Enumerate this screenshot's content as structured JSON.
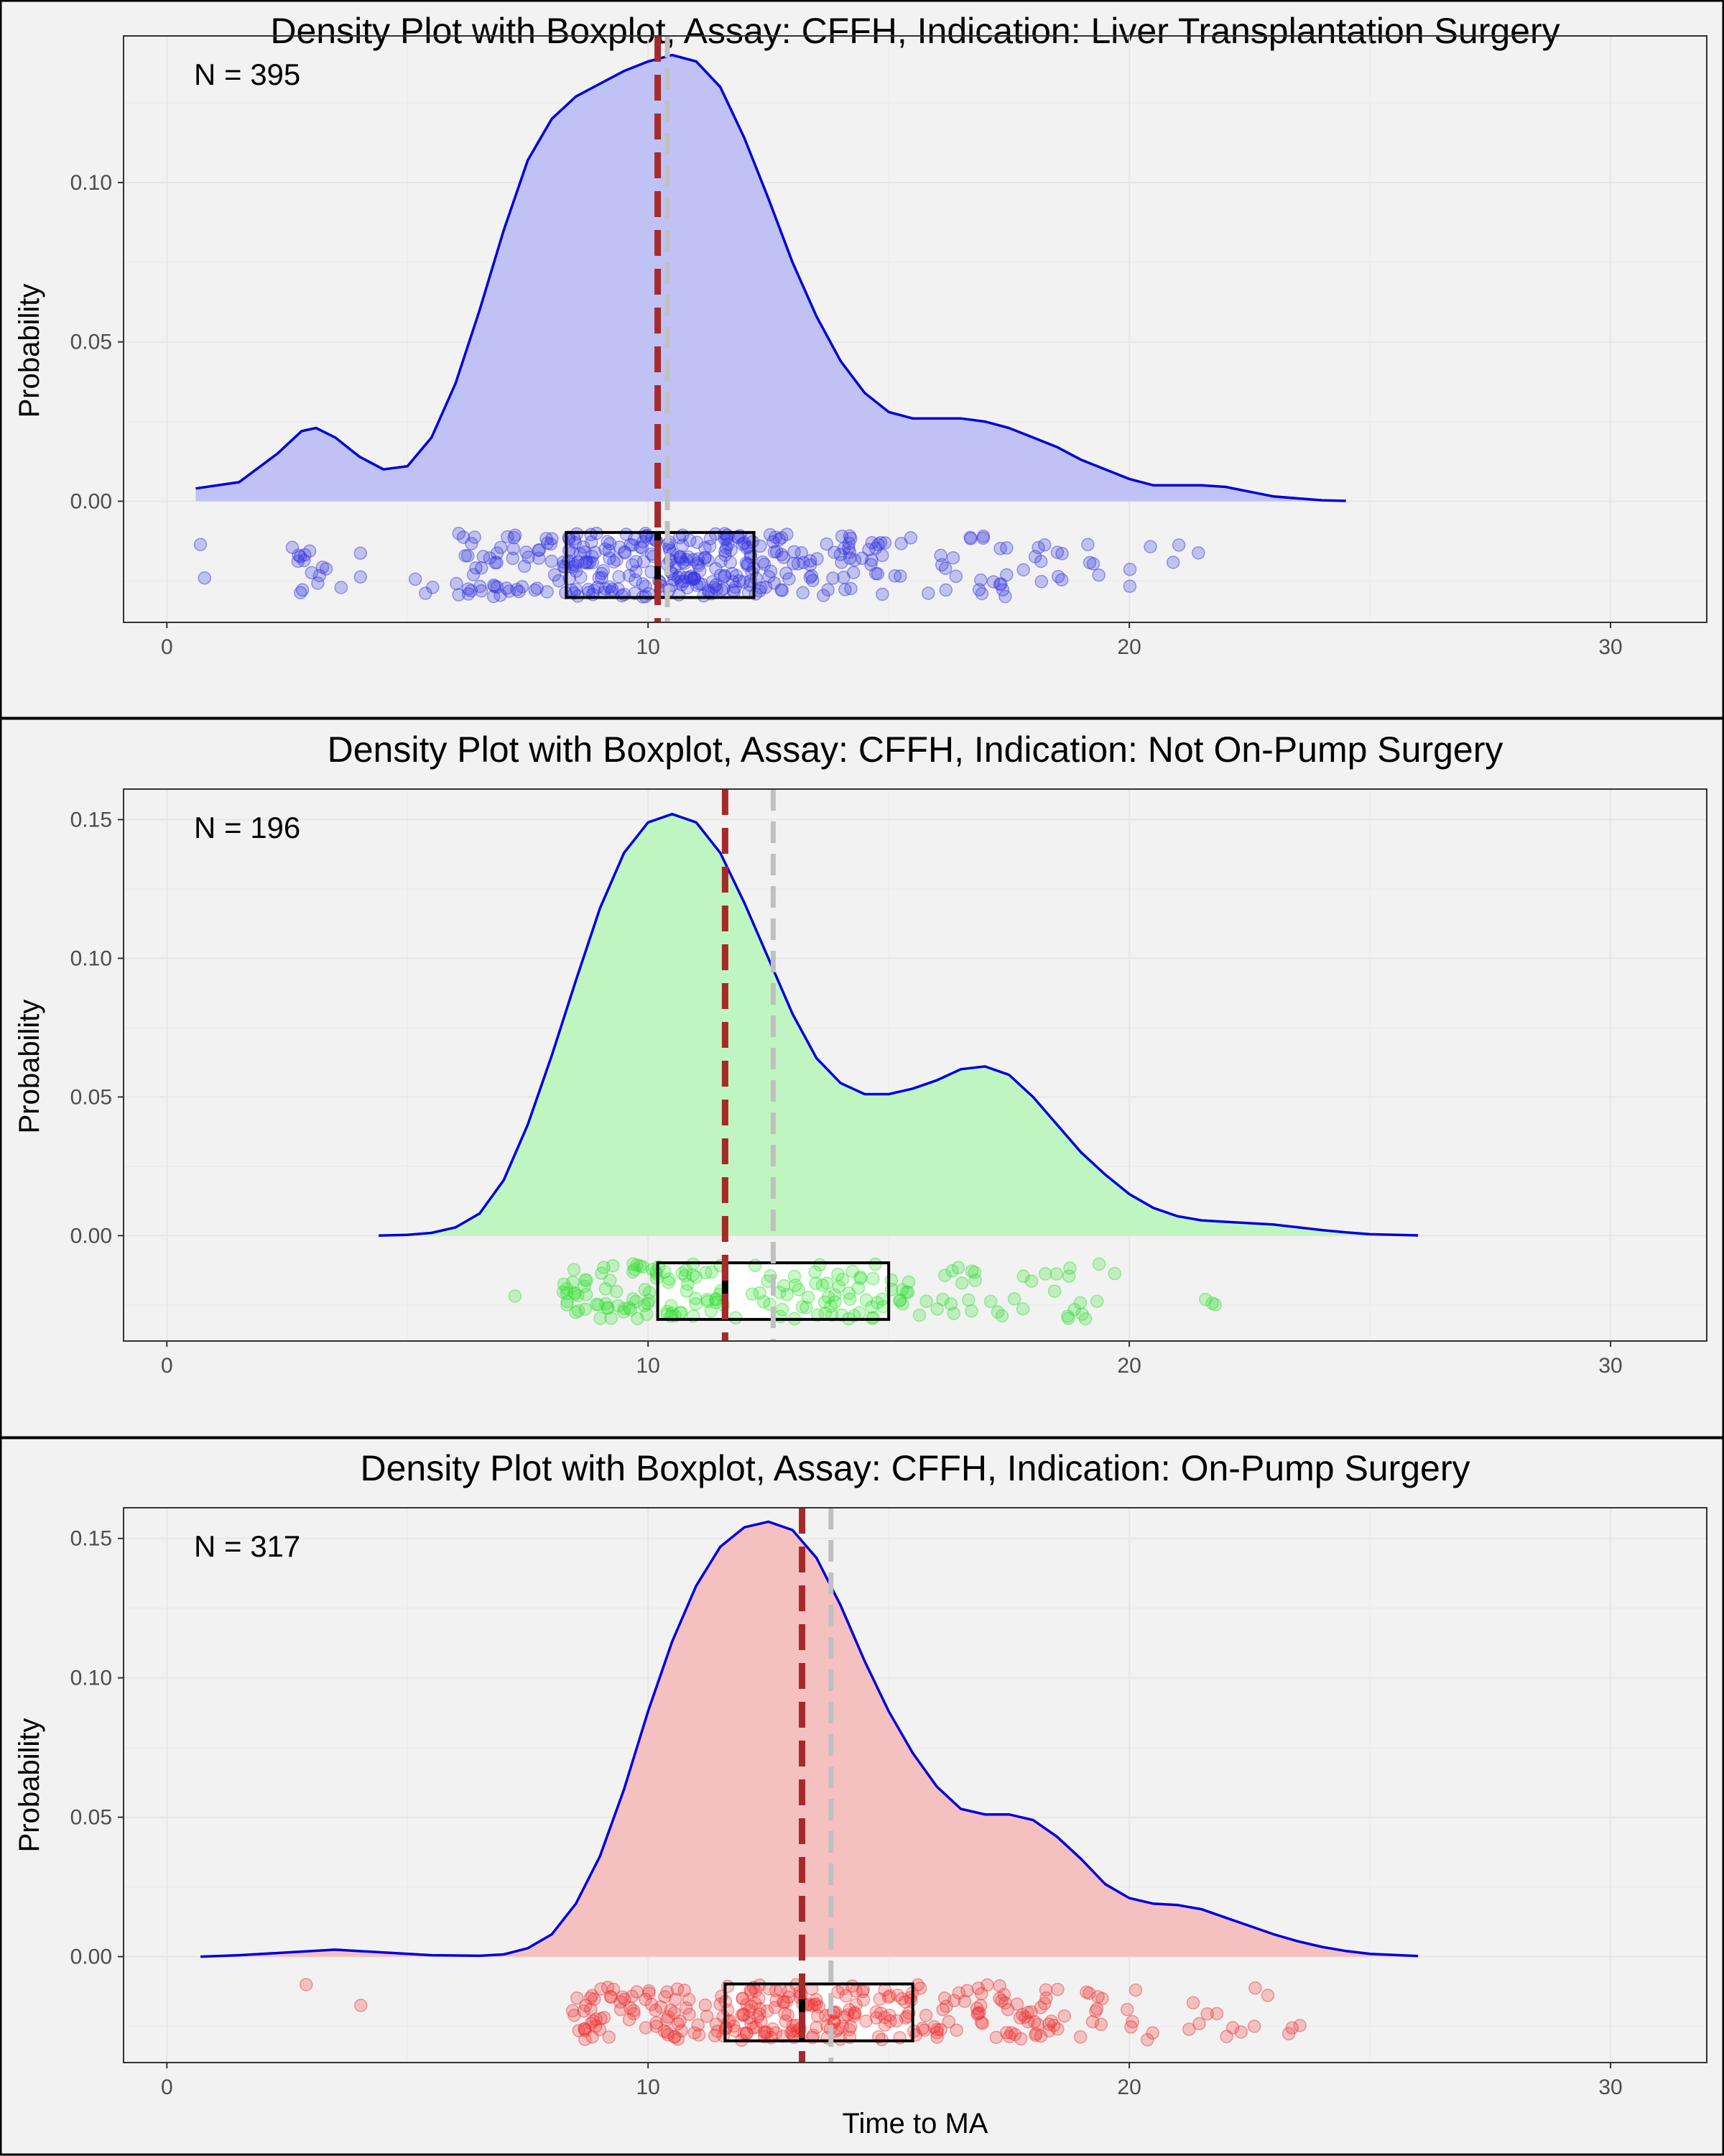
{
  "figure": {
    "xlabel": "Time to MA"
  },
  "chart_data": [
    {
      "type": "density+boxplot",
      "title": "Density Plot with Boxplot, Assay: CFFH, Indication: Liver Transplantation Surgery",
      "ylabel": "Probability",
      "annotation": "N = 395",
      "n": 395,
      "xlim": [
        -0.9,
        32
      ],
      "ylim": [
        -0.038,
        0.146
      ],
      "x_ticks": [
        0,
        10,
        20,
        30
      ],
      "y_ticks": [
        0,
        0.05,
        0.1
      ],
      "y_tick_labels": [
        "0.00",
        "0.05",
        "0.10"
      ],
      "fill_color": "#c0c2f5",
      "line_color": "#0000dd",
      "point_color": "#3030e0",
      "density": [
        [
          0.6,
          0.004
        ],
        [
          1.5,
          0.006
        ],
        [
          2.3,
          0.015
        ],
        [
          2.8,
          0.022
        ],
        [
          3.1,
          0.023
        ],
        [
          3.5,
          0.02
        ],
        [
          4.0,
          0.014
        ],
        [
          4.5,
          0.01
        ],
        [
          5.0,
          0.011
        ],
        [
          5.5,
          0.02
        ],
        [
          6.0,
          0.037
        ],
        [
          6.5,
          0.06
        ],
        [
          7.0,
          0.085
        ],
        [
          7.5,
          0.107
        ],
        [
          8.0,
          0.12
        ],
        [
          8.5,
          0.127
        ],
        [
          9.0,
          0.131
        ],
        [
          9.5,
          0.135
        ],
        [
          10.0,
          0.138
        ],
        [
          10.5,
          0.14
        ],
        [
          11.0,
          0.138
        ],
        [
          11.5,
          0.13
        ],
        [
          12.0,
          0.114
        ],
        [
          12.5,
          0.095
        ],
        [
          13.0,
          0.075
        ],
        [
          13.5,
          0.058
        ],
        [
          14.0,
          0.044
        ],
        [
          14.5,
          0.034
        ],
        [
          15.0,
          0.028
        ],
        [
          15.5,
          0.026
        ],
        [
          16.0,
          0.026
        ],
        [
          16.5,
          0.026
        ],
        [
          17.0,
          0.025
        ],
        [
          17.5,
          0.023
        ],
        [
          18.0,
          0.02
        ],
        [
          18.5,
          0.017
        ],
        [
          19.0,
          0.013
        ],
        [
          19.5,
          0.01
        ],
        [
          20.0,
          0.007
        ],
        [
          20.5,
          0.005
        ],
        [
          21.0,
          0.005
        ],
        [
          21.5,
          0.005
        ],
        [
          22.0,
          0.0045
        ],
        [
          22.5,
          0.003
        ],
        [
          23.0,
          0.0015
        ],
        [
          24.0,
          0.0003
        ],
        [
          24.5,
          0.0001
        ]
      ],
      "boxplot": {
        "q1": 8.3,
        "median": 10.2,
        "q3": 12.2,
        "y_bottom": -0.0302,
        "y_top": -0.0098
      },
      "median_line": 10.2,
      "mean_line": 10.4,
      "points": {
        "y_range": [
          -0.03,
          -0.01
        ],
        "groups": [
          {
            "min": 0.6,
            "max": 1.0,
            "count": 2
          },
          {
            "min": 2.6,
            "max": 3.4,
            "count": 14
          },
          {
            "min": 3.5,
            "max": 4.2,
            "count": 3
          },
          {
            "min": 5.0,
            "max": 6.5,
            "count": 5
          },
          {
            "min": 6.0,
            "max": 8.3,
            "count": 55
          },
          {
            "min": 8.3,
            "max": 12.2,
            "count": 200
          },
          {
            "min": 12.2,
            "max": 15.0,
            "count": 70
          },
          {
            "min": 15.0,
            "max": 19.5,
            "count": 40
          },
          {
            "min": 20.0,
            "max": 22.1,
            "count": 6
          }
        ]
      }
    },
    {
      "type": "density+boxplot",
      "title": "Density Plot with Boxplot, Assay: CFFH, Indication: Not On-Pump Surgery",
      "ylabel": "Probability",
      "annotation": "N = 196",
      "n": 196,
      "xlim": [
        -0.9,
        32
      ],
      "ylim": [
        -0.038,
        0.161
      ],
      "x_ticks": [
        0,
        10,
        20,
        30
      ],
      "y_ticks": [
        0,
        0.05,
        0.1,
        0.15
      ],
      "y_tick_labels": [
        "0.00",
        "0.05",
        "0.10",
        "0.15"
      ],
      "fill_color": "#bff5c0",
      "line_color": "#0000dd",
      "point_color": "#30e030",
      "density": [
        [
          4.4,
          0.0
        ],
        [
          5.0,
          0.0003
        ],
        [
          5.5,
          0.001
        ],
        [
          6.0,
          0.003
        ],
        [
          6.5,
          0.008
        ],
        [
          7.0,
          0.02
        ],
        [
          7.5,
          0.04
        ],
        [
          8.0,
          0.065
        ],
        [
          8.5,
          0.092
        ],
        [
          9.0,
          0.118
        ],
        [
          9.5,
          0.138
        ],
        [
          10.0,
          0.149
        ],
        [
          10.5,
          0.152
        ],
        [
          11.0,
          0.149
        ],
        [
          11.5,
          0.138
        ],
        [
          12.0,
          0.12
        ],
        [
          12.5,
          0.1
        ],
        [
          13.0,
          0.08
        ],
        [
          13.5,
          0.064
        ],
        [
          14.0,
          0.055
        ],
        [
          14.5,
          0.051
        ],
        [
          15.0,
          0.051
        ],
        [
          15.5,
          0.053
        ],
        [
          16.0,
          0.056
        ],
        [
          16.5,
          0.06
        ],
        [
          17.0,
          0.061
        ],
        [
          17.5,
          0.058
        ],
        [
          18.0,
          0.05
        ],
        [
          18.5,
          0.04
        ],
        [
          19.0,
          0.03
        ],
        [
          19.5,
          0.022
        ],
        [
          20.0,
          0.015
        ],
        [
          20.5,
          0.01
        ],
        [
          21.0,
          0.007
        ],
        [
          21.5,
          0.0055
        ],
        [
          22.0,
          0.005
        ],
        [
          22.5,
          0.0045
        ],
        [
          23.0,
          0.004
        ],
        [
          23.5,
          0.003
        ],
        [
          24.0,
          0.002
        ],
        [
          24.5,
          0.0012
        ],
        [
          25.0,
          0.0005
        ],
        [
          26.0,
          0.0001
        ]
      ],
      "boxplot": {
        "q1": 10.2,
        "median": 11.6,
        "q3": 15.0,
        "y_bottom": -0.0302,
        "y_top": -0.0098
      },
      "median_line": 11.6,
      "mean_line": 12.6,
      "points": {
        "y_range": [
          -0.03,
          -0.01
        ],
        "groups": [
          {
            "min": 7.2,
            "max": 7.5,
            "count": 1
          },
          {
            "min": 8.2,
            "max": 10.2,
            "count": 55
          },
          {
            "min": 10.2,
            "max": 11.6,
            "count": 35
          },
          {
            "min": 11.6,
            "max": 15.0,
            "count": 55
          },
          {
            "min": 15.0,
            "max": 19.8,
            "count": 45
          },
          {
            "min": 20.8,
            "max": 23.0,
            "count": 3
          }
        ]
      }
    },
    {
      "type": "density+boxplot",
      "title": "Density Plot with Boxplot, Assay: CFFH, Indication: On-Pump Surgery",
      "ylabel": "Probability",
      "annotation": "N = 317",
      "n": 317,
      "xlim": [
        -0.9,
        32
      ],
      "ylim": [
        -0.038,
        0.161
      ],
      "x_ticks": [
        0,
        10,
        20,
        30
      ],
      "y_ticks": [
        0,
        0.05,
        0.1,
        0.15
      ],
      "y_tick_labels": [
        "0.00",
        "0.05",
        "0.10",
        "0.15"
      ],
      "fill_color": "#f5c0c0",
      "line_color": "#0000dd",
      "point_color": "#f03030",
      "density": [
        [
          0.7,
          0.0
        ],
        [
          1.5,
          0.0005
        ],
        [
          2.5,
          0.0015
        ],
        [
          3.5,
          0.0025
        ],
        [
          4.5,
          0.0015
        ],
        [
          5.5,
          0.0005
        ],
        [
          6.5,
          0.0003
        ],
        [
          7.0,
          0.0008
        ],
        [
          7.5,
          0.003
        ],
        [
          8.0,
          0.008
        ],
        [
          8.5,
          0.019
        ],
        [
          9.0,
          0.036
        ],
        [
          9.5,
          0.06
        ],
        [
          10.0,
          0.088
        ],
        [
          10.5,
          0.113
        ],
        [
          11.0,
          0.133
        ],
        [
          11.5,
          0.147
        ],
        [
          12.0,
          0.154
        ],
        [
          12.5,
          0.156
        ],
        [
          13.0,
          0.153
        ],
        [
          13.5,
          0.143
        ],
        [
          14.0,
          0.126
        ],
        [
          14.5,
          0.106
        ],
        [
          15.0,
          0.088
        ],
        [
          15.5,
          0.073
        ],
        [
          16.0,
          0.061
        ],
        [
          16.5,
          0.053
        ],
        [
          17.0,
          0.051
        ],
        [
          17.5,
          0.051
        ],
        [
          18.0,
          0.049
        ],
        [
          18.5,
          0.043
        ],
        [
          19.0,
          0.035
        ],
        [
          19.5,
          0.026
        ],
        [
          20.0,
          0.021
        ],
        [
          20.5,
          0.019
        ],
        [
          21.0,
          0.0185
        ],
        [
          21.5,
          0.017
        ],
        [
          22.0,
          0.014
        ],
        [
          22.5,
          0.011
        ],
        [
          23.0,
          0.008
        ],
        [
          23.5,
          0.0055
        ],
        [
          24.0,
          0.0035
        ],
        [
          24.5,
          0.002
        ],
        [
          25.0,
          0.001
        ],
        [
          26.0,
          0.0002
        ]
      ],
      "boxplot": {
        "q1": 11.6,
        "median": 13.2,
        "q3": 15.5,
        "y_bottom": -0.0302,
        "y_top": -0.0098
      },
      "median_line": 13.2,
      "mean_line": 13.8,
      "points": {
        "y_range": [
          -0.03,
          -0.01
        ],
        "groups": [
          {
            "min": 2.7,
            "max": 2.9,
            "count": 1
          },
          {
            "min": 3.9,
            "max": 4.1,
            "count": 1
          },
          {
            "min": 8.4,
            "max": 11.6,
            "count": 80
          },
          {
            "min": 11.6,
            "max": 13.2,
            "count": 70
          },
          {
            "min": 13.2,
            "max": 15.5,
            "count": 70
          },
          {
            "min": 15.5,
            "max": 19.5,
            "count": 75
          },
          {
            "min": 19.5,
            "max": 23.6,
            "count": 20
          }
        ]
      }
    }
  ]
}
